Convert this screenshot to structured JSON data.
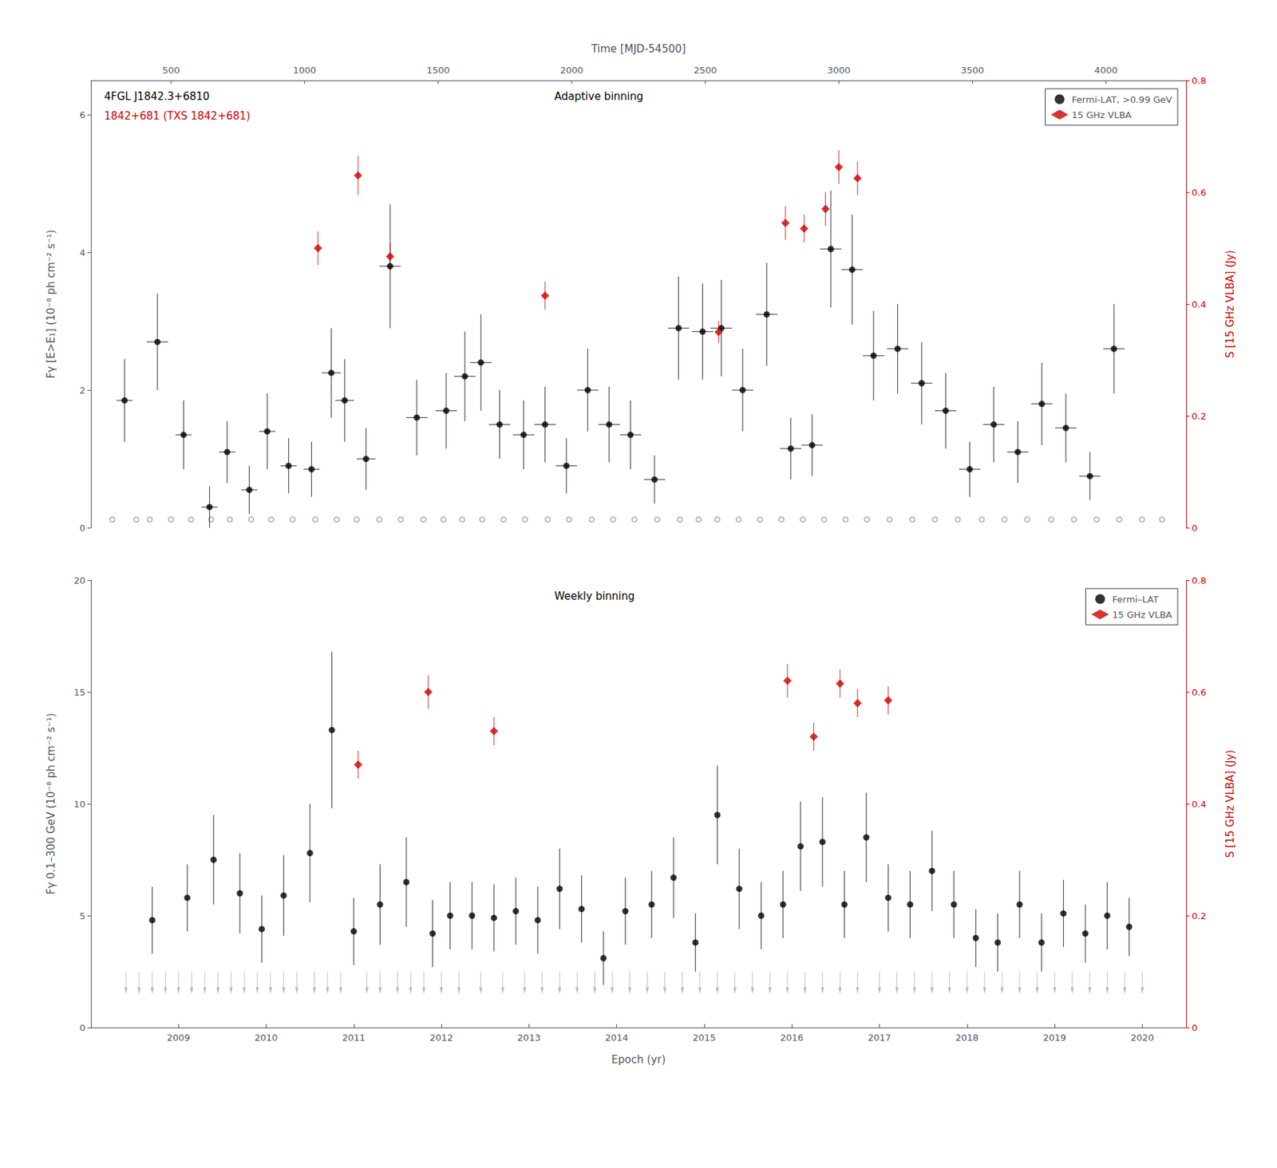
{
  "chart_data": [
    {
      "type": "scatter",
      "title": "Adaptive binning",
      "annotations": [
        {
          "text": "4FGL J1842.3+6810",
          "color": "#000000"
        },
        {
          "text": "1842+681 (TXS 1842+681)",
          "color": "#cc0000"
        }
      ],
      "x_label": "Time [MJD-54500]",
      "y_label": "Fγ [E>E₁] (10⁻⁸ ph cm⁻² s⁻¹)",
      "y2_label": "S [15 GHz VLBA] (Jy)",
      "xlim": [
        200,
        4300
      ],
      "xticks": [
        500,
        1000,
        1500,
        2000,
        2500,
        3000,
        3500,
        4000
      ],
      "ylim": [
        0,
        6.5
      ],
      "yticks": [
        0,
        2,
        4,
        6
      ],
      "y2lim": [
        0,
        0.8
      ],
      "y2ticks": [
        0,
        0.2,
        0.4,
        0.6,
        0.8
      ],
      "grid": false,
      "legend": "upper right",
      "series": [
        {
          "name": "Fermi-LAT, >0.99 GeV",
          "color": "#000000",
          "marker": "circle",
          "x": [
            326,
            449,
            547,
            644,
            710,
            793,
            860,
            940,
            1026,
            1100,
            1150,
            1230,
            1320,
            1420,
            1530,
            1600,
            1660,
            1730,
            1820,
            1900,
            1980,
            2060,
            2140,
            2220,
            2310,
            2400,
            2490,
            2560,
            2640,
            2730,
            2820,
            2900,
            2970,
            3050,
            3130,
            3220,
            3310,
            3400,
            3490,
            3580,
            3670,
            3760,
            3850,
            3940,
            4030
          ],
          "values": [
            1.85,
            2.7,
            1.35,
            0.3,
            1.1,
            0.55,
            1.4,
            0.9,
            0.85,
            2.25,
            1.85,
            1.0,
            3.8,
            1.6,
            1.7,
            2.2,
            2.4,
            1.5,
            1.35,
            1.5,
            0.9,
            2.0,
            1.5,
            1.35,
            0.7,
            2.9,
            2.85,
            2.9,
            2.0,
            3.1,
            1.15,
            1.2,
            4.05,
            3.75,
            2.5,
            2.6,
            2.1,
            1.7,
            0.85,
            1.5,
            1.1,
            1.8,
            1.45,
            0.75,
            2.6
          ],
          "yerr_lo": [
            0.6,
            0.7,
            0.5,
            0.3,
            0.45,
            0.35,
            0.55,
            0.4,
            0.4,
            0.65,
            0.6,
            0.45,
            0.9,
            0.55,
            0.55,
            0.65,
            0.7,
            0.5,
            0.5,
            0.55,
            0.4,
            0.6,
            0.55,
            0.5,
            0.35,
            0.75,
            0.7,
            0.7,
            0.6,
            0.75,
            0.45,
            0.45,
            0.85,
            0.8,
            0.65,
            0.65,
            0.6,
            0.55,
            0.4,
            0.55,
            0.45,
            0.6,
            0.5,
            0.35,
            0.65
          ],
          "yerr_hi": [
            0.6,
            0.7,
            0.5,
            0.3,
            0.45,
            0.35,
            0.55,
            0.4,
            0.4,
            0.65,
            0.6,
            0.45,
            0.9,
            0.55,
            0.55,
            0.65,
            0.7,
            0.5,
            0.5,
            0.55,
            0.4,
            0.6,
            0.55,
            0.5,
            0.35,
            0.75,
            0.7,
            0.7,
            0.6,
            0.75,
            0.45,
            0.45,
            0.85,
            0.8,
            0.65,
            0.65,
            0.6,
            0.55,
            0.4,
            0.55,
            0.45,
            0.6,
            0.5,
            0.35,
            0.65
          ],
          "xerr": [
            30,
            40,
            30,
            30,
            30,
            30,
            30,
            30,
            30,
            35,
            35,
            35,
            40,
            40,
            40,
            40,
            40,
            40,
            40,
            40,
            40,
            40,
            40,
            40,
            40,
            40,
            40,
            40,
            40,
            40,
            40,
            40,
            40,
            40,
            40,
            40,
            40,
            40,
            40,
            40,
            40,
            40,
            40,
            40,
            40
          ]
        },
        {
          "color": "#aaaaaa",
          "marker": "open_circle",
          "x": [
            280,
            370,
            420,
            500,
            575,
            650,
            720,
            800,
            875,
            955,
            1040,
            1120,
            1195,
            1280,
            1360,
            1445,
            1520,
            1590,
            1665,
            1745,
            1825,
            1910,
            1990,
            2075,
            2155,
            2235,
            2320,
            2405,
            2475,
            2545,
            2625,
            2705,
            2785,
            2865,
            2945,
            3025,
            3105,
            3190,
            3275,
            3360,
            3445,
            3535,
            3620,
            3705,
            3795,
            3880,
            3965,
            4050,
            4135,
            4210
          ],
          "values": [
            0.12,
            0.12,
            0.12,
            0.12,
            0.12,
            0.12,
            0.12,
            0.12,
            0.12,
            0.12,
            0.12,
            0.12,
            0.12,
            0.12,
            0.12,
            0.12,
            0.12,
            0.12,
            0.12,
            0.12,
            0.12,
            0.12,
            0.12,
            0.12,
            0.12,
            0.12,
            0.12,
            0.12,
            0.12,
            0.12,
            0.12,
            0.12,
            0.12,
            0.12,
            0.12,
            0.12,
            0.12,
            0.12,
            0.12,
            0.12,
            0.12,
            0.12,
            0.12,
            0.12,
            0.12,
            0.12,
            0.12,
            0.12,
            0.12,
            0.12
          ]
        },
        {
          "name": "15 GHz VLBA",
          "color": "#cc0000",
          "marker": "diamond",
          "axis": "y2",
          "x": [
            1050,
            1200,
            1320,
            1900,
            2550,
            2800,
            2870,
            2950,
            3000,
            3070
          ],
          "values": [
            0.5,
            0.63,
            0.485,
            0.415,
            0.35,
            0.545,
            0.535,
            0.57,
            0.645,
            0.625
          ],
          "yerr": [
            0.03,
            0.035,
            0.025,
            0.025,
            0.02,
            0.03,
            0.025,
            0.03,
            0.03,
            0.03
          ]
        }
      ]
    },
    {
      "type": "scatter",
      "title": "Weekly binning",
      "x_label": "Epoch (yr)",
      "y_label": "Fγ 0.1–300 GeV (10⁻⁸ ph cm⁻² s⁻¹)",
      "y2_label": "S [15 GHz VLBA] (Jy)",
      "xlim": [
        2008.0,
        2020.5
      ],
      "xticks": [
        2009,
        2010,
        2011,
        2012,
        2013,
        2014,
        2015,
        2016,
        2017,
        2018,
        2019,
        2020
      ],
      "ylim": [
        0,
        20
      ],
      "yticks": [
        0,
        5,
        10,
        15,
        20
      ],
      "y2lim": [
        0,
        0.8
      ],
      "y2ticks": [
        0,
        0.2,
        0.4,
        0.6,
        0.8
      ],
      "grid": false,
      "legend": "upper right",
      "series": [
        {
          "name": "Fermi–LAT",
          "color": "#000000",
          "marker": "circle",
          "x": [
            2008.7,
            2009.1,
            2009.4,
            2009.7,
            2009.95,
            2010.2,
            2010.5,
            2010.75,
            2011.0,
            2011.3,
            2011.6,
            2011.9,
            2012.1,
            2012.35,
            2012.6,
            2012.85,
            2013.1,
            2013.35,
            2013.6,
            2013.85,
            2014.1,
            2014.4,
            2014.65,
            2014.9,
            2015.15,
            2015.4,
            2015.65,
            2015.9,
            2016.1,
            2016.35,
            2016.6,
            2016.85,
            2017.1,
            2017.35,
            2017.6,
            2017.85,
            2018.1,
            2018.35,
            2018.6,
            2018.85,
            2019.1,
            2019.35,
            2019.6,
            2019.85
          ],
          "values": [
            4.8,
            5.8,
            7.5,
            6.0,
            4.4,
            5.9,
            7.8,
            13.3,
            4.3,
            5.5,
            6.5,
            4.2,
            5.0,
            5.0,
            4.9,
            5.2,
            4.8,
            6.2,
            5.3,
            3.1,
            5.2,
            5.5,
            6.7,
            3.8,
            9.5,
            6.2,
            5.0,
            5.5,
            8.1,
            8.3,
            5.5,
            8.5,
            5.8,
            5.5,
            7.0,
            5.5,
            4.0,
            3.8,
            5.5,
            3.8,
            5.1,
            4.2,
            5.0,
            4.5
          ],
          "yerr_lo": [
            1.5,
            1.5,
            2.0,
            1.8,
            1.5,
            1.8,
            2.2,
            3.5,
            1.5,
            1.8,
            2.0,
            1.5,
            1.5,
            1.5,
            1.5,
            1.5,
            1.5,
            1.8,
            1.5,
            1.2,
            1.5,
            1.5,
            1.8,
            1.3,
            2.2,
            1.8,
            1.5,
            1.5,
            2.0,
            2.0,
            1.5,
            2.0,
            1.5,
            1.5,
            1.8,
            1.5,
            1.3,
            1.3,
            1.5,
            1.3,
            1.5,
            1.3,
            1.5,
            1.3
          ],
          "yerr_hi": [
            1.5,
            1.5,
            2.0,
            1.8,
            1.5,
            1.8,
            2.2,
            3.5,
            1.5,
            1.8,
            2.0,
            1.5,
            1.5,
            1.5,
            1.5,
            1.5,
            1.5,
            1.8,
            1.5,
            1.2,
            1.5,
            1.5,
            1.8,
            1.3,
            2.2,
            1.8,
            1.5,
            1.5,
            2.0,
            2.0,
            1.5,
            2.0,
            1.5,
            1.5,
            1.8,
            1.5,
            1.3,
            1.3,
            1.5,
            1.3,
            1.5,
            1.3,
            1.5,
            1.3
          ]
        },
        {
          "color": "#aaaaaa",
          "marker": "arrow_down",
          "x": [
            2008.4,
            2008.55,
            2008.7,
            2008.85,
            2009.0,
            2009.15,
            2009.3,
            2009.45,
            2009.6,
            2009.75,
            2009.9,
            2010.05,
            2010.2,
            2010.35,
            2010.55,
            2010.7,
            2010.85,
            2011.15,
            2011.3,
            2011.5,
            2011.65,
            2011.8,
            2012.0,
            2012.2,
            2012.45,
            2012.7,
            2012.95,
            2013.15,
            2013.35,
            2013.55,
            2013.75,
            2013.95,
            2014.15,
            2014.35,
            2014.55,
            2014.75,
            2014.95,
            2015.15,
            2015.35,
            2015.55,
            2015.75,
            2015.95,
            2016.15,
            2016.35,
            2016.55,
            2016.75,
            2017.0,
            2017.2,
            2017.4,
            2017.6,
            2017.8,
            2018.0,
            2018.2,
            2018.4,
            2018.6,
            2018.8,
            2019.0,
            2019.2,
            2019.4,
            2019.6,
            2019.8,
            2020.0
          ],
          "values": [
            2.5,
            2.5,
            2.5,
            2.5,
            2.5,
            2.5,
            2.5,
            2.5,
            2.5,
            2.5,
            2.5,
            2.5,
            2.5,
            2.5,
            2.5,
            2.5,
            2.5,
            2.5,
            2.5,
            2.5,
            2.5,
            2.5,
            2.5,
            2.5,
            2.5,
            2.5,
            2.5,
            2.5,
            2.5,
            2.5,
            2.5,
            2.5,
            2.5,
            2.5,
            2.5,
            2.5,
            2.5,
            2.5,
            2.5,
            2.5,
            2.5,
            2.5,
            2.5,
            2.5,
            2.5,
            2.5,
            2.5,
            2.5,
            2.5,
            2.5,
            2.5,
            2.5,
            2.5,
            2.5,
            2.5,
            2.5,
            2.5,
            2.5,
            2.5,
            2.5,
            2.5,
            2.5
          ]
        },
        {
          "name": "15 GHz VLBA",
          "color": "#cc0000",
          "marker": "diamond",
          "axis": "y2",
          "x": [
            2011.05,
            2011.85,
            2012.6,
            2015.95,
            2016.25,
            2016.55,
            2016.75,
            2017.1
          ],
          "values": [
            0.47,
            0.6,
            0.53,
            0.62,
            0.52,
            0.615,
            0.58,
            0.585
          ],
          "yerr": [
            0.025,
            0.03,
            0.025,
            0.03,
            0.025,
            0.025,
            0.025,
            0.025
          ]
        }
      ]
    }
  ]
}
